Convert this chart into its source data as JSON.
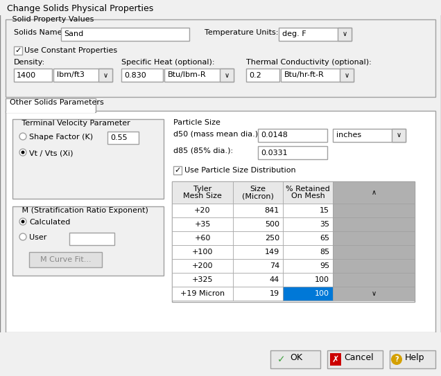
{
  "title": "Change Solids Physical Properties",
  "bg_color": "#f0f0f0",
  "section_label_solid_property": "Solid Property Values",
  "label_solids_name": "Solids Name:",
  "value_solids_name": "Sand",
  "label_temp_units": "Temperature Units:",
  "value_temp_units": "deg. F",
  "checkbox_constant": "Use Constant Properties",
  "label_density": "Density:",
  "value_density": "1400",
  "value_density_unit": "lbm/ft3",
  "label_specific_heat": "Specific Heat (optional):",
  "value_specific_heat": "0.830",
  "value_specific_heat_unit": "Btu/lbm-R",
  "label_thermal_cond": "Thermal Conductivity (optional):",
  "value_thermal_cond": "0.2",
  "value_thermal_cond_unit": "Btu/hr-ft-R",
  "tab_label": "Other Solids Parameters",
  "group_terminal": "Terminal Velocity Parameter",
  "radio_shape_factor": "Shape Factor (K)",
  "radio_vt_vts": "Vt / Vts (Xi)",
  "shape_factor_value": "0.55",
  "group_m_strat": "M (Stratification Ratio Exponent)",
  "radio_calculated": "Calculated",
  "radio_user": "User",
  "btn_m_curve": "M Curve Fit...",
  "label_particle_size": "Particle Size",
  "label_d50": "d50 (mass mean dia.):",
  "value_d50": "0.0148",
  "label_d85": "d85 (85% dia.):",
  "value_d85": "0.0331",
  "value_size_unit": "inches",
  "checkbox_psd": "Use Particle Size Distribution",
  "table_headers": [
    "Tyler\nMesh Size",
    "Size\n(Micron)",
    "% Retained\nOn Mesh"
  ],
  "table_data": [
    [
      "+20",
      "841",
      "15"
    ],
    [
      "+35",
      "500",
      "35"
    ],
    [
      "+60",
      "250",
      "65"
    ],
    [
      "+100",
      "149",
      "85"
    ],
    [
      "+200",
      "74",
      "95"
    ],
    [
      "+325",
      "44",
      "100"
    ],
    [
      "+19 Micron",
      "19",
      "100"
    ]
  ],
  "btn_ok": "OK",
  "btn_cancel": "Cancel",
  "btn_help": "Help",
  "white": "#ffffff",
  "light_gray": "#e8e8e8",
  "mid_gray": "#c0c0c0",
  "border_color": "#a0a0a0",
  "text_color": "#000000",
  "blue_highlight": "#0078d7",
  "scrollbar_gray": "#b0b0b0"
}
